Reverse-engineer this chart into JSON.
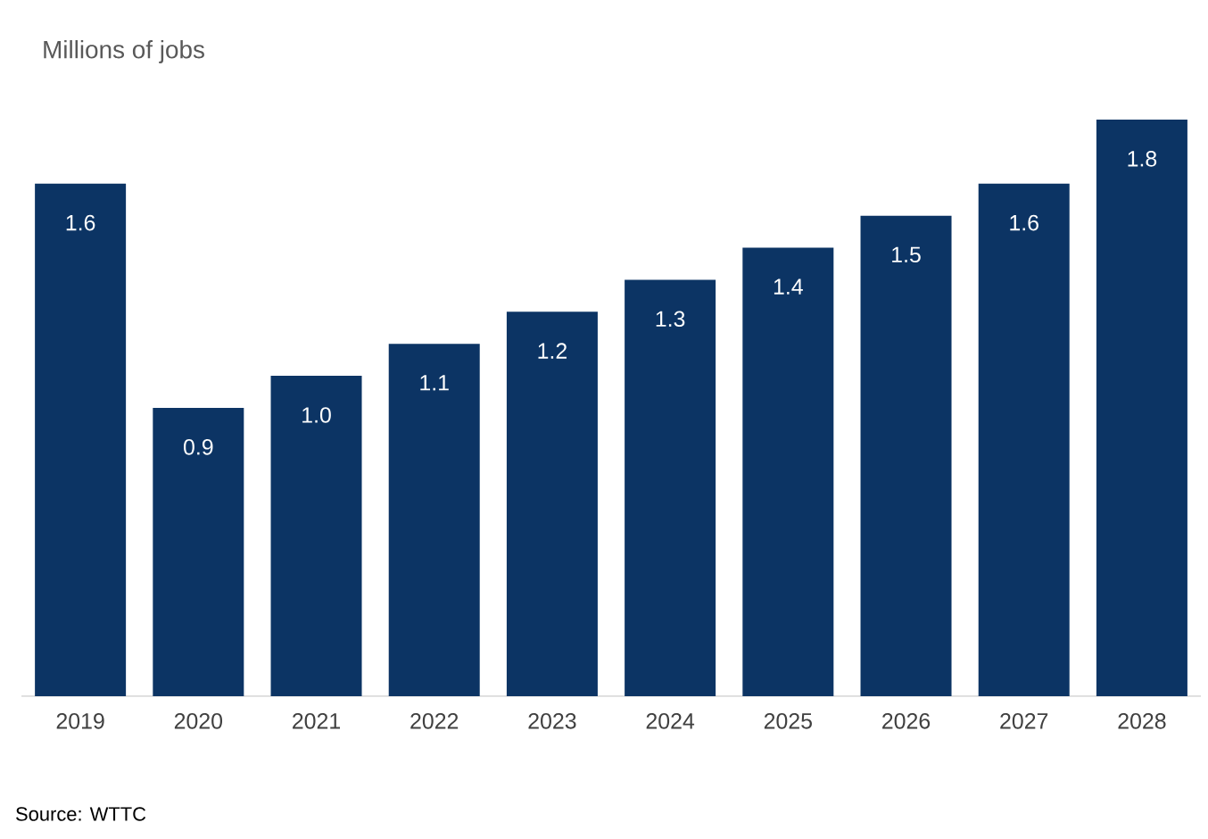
{
  "chart_data": {
    "type": "bar",
    "title": "Millions of jobs",
    "categories": [
      "2019",
      "2020",
      "2021",
      "2022",
      "2023",
      "2024",
      "2025",
      "2026",
      "2027",
      "2028"
    ],
    "values": [
      1.6,
      0.9,
      1.0,
      1.1,
      1.2,
      1.3,
      1.4,
      1.5,
      1.6,
      1.8
    ],
    "value_labels": [
      "1.6",
      "0.9",
      "1.0",
      "1.1",
      "1.2",
      "1.3",
      "1.4",
      "1.5",
      "1.6",
      "1.8"
    ],
    "color": "#0c3464",
    "annotations": [
      "Source: WTTC"
    ]
  }
}
